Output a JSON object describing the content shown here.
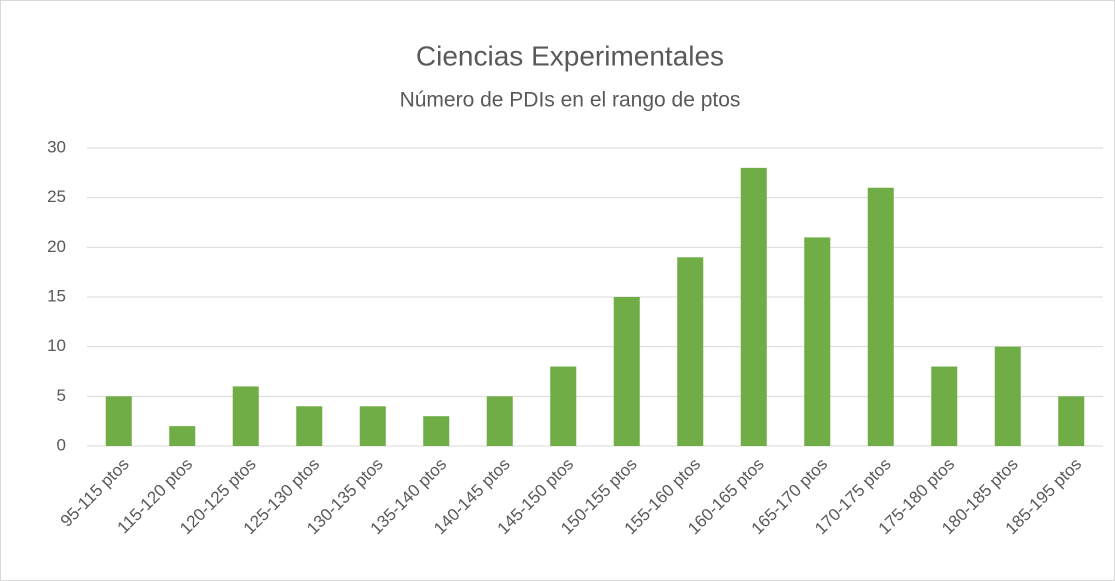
{
  "chart_data": {
    "type": "bar",
    "title": "Ciencias Experimentales",
    "subtitle": "Número de PDIs en el rango de ptos",
    "categories": [
      "95-115 ptos",
      "115-120 ptos",
      "120-125 ptos",
      "125-130 ptos",
      "130-135 ptos",
      "135-140 ptos",
      "140-145 ptos",
      "145-150 ptos",
      "150-155 ptos",
      "155-160 ptos",
      "160-165 ptos",
      "165-170 ptos",
      "170-175 ptos",
      "175-180 ptos",
      "180-185 ptos",
      "185-195 ptos"
    ],
    "values": [
      5,
      2,
      6,
      4,
      4,
      3,
      5,
      8,
      15,
      19,
      28,
      21,
      26,
      8,
      10,
      5
    ],
    "color": "#70ad47",
    "ylim": [
      0,
      30
    ],
    "yticks": [
      0,
      5,
      10,
      15,
      20,
      25,
      30
    ],
    "grid": true
  }
}
